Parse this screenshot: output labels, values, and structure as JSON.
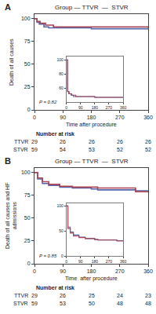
{
  "chart_data": [
    {
      "type": "step",
      "title": "Group — TTVR  —  STVR",
      "xlabel": "Time after procedure",
      "ylabel": "Death of all causes",
      "annotations": [
        "A",
        "P = 0.82"
      ],
      "xlim": [
        0,
        360
      ],
      "ylim": [
        0,
        105
      ],
      "xticks": [
        0,
        90,
        180,
        270,
        360
      ],
      "yticks": [
        0,
        25,
        50,
        75,
        100
      ],
      "grid": false,
      "series": [
        {
          "name": "TTVR",
          "color": "#5566aa",
          "x": [
            0,
            8,
            15,
            30,
            45,
            180,
            360
          ],
          "values": [
            100,
            96,
            94,
            91,
            90,
            89,
            89
          ]
        },
        {
          "name": "STVR",
          "color": "#aa4455",
          "x": [
            0,
            8,
            18,
            35,
            60,
            180,
            360
          ],
          "values": [
            100,
            97,
            95,
            93,
            91,
            91,
            90
          ]
        }
      ],
      "inset": {
        "type": "step",
        "xlim": [
          0,
          360
        ],
        "ylim": [
          40,
          105
        ],
        "xticks": [
          0,
          90,
          180,
          270,
          360
        ],
        "yticks": [
          60,
          80,
          100
        ],
        "grid": false,
        "series": [
          {
            "name": "TTVR",
            "color": "#5566aa",
            "x": [
              0,
              8,
              15,
              30,
              45,
              180,
              360
            ],
            "values": [
              100,
              55,
              52,
              50,
              48,
              47,
              47
            ]
          },
          {
            "name": "STVR",
            "color": "#aa4455",
            "x": [
              0,
              8,
              18,
              35,
              60,
              180,
              360
            ],
            "values": [
              100,
              55,
              52,
              50,
              48,
              47,
              47
            ]
          }
        ]
      },
      "number_at_risk": {
        "title": "Number at risk",
        "x": [
          0,
          90,
          180,
          270,
          360
        ],
        "series": [
          {
            "name": "TTVR",
            "values": [
              29,
              26,
              26,
              26,
              26
            ]
          },
          {
            "name": "STVR",
            "values": [
              59,
              54,
              53,
              52,
              52
            ]
          }
        ]
      }
    },
    {
      "type": "step",
      "title": "Group — TTVR  —  STVR",
      "xlabel": "Time  after procedure",
      "ylabel": "Death of all causes and HF admissions",
      "annotations": [
        "B",
        "P = 0.85"
      ],
      "xlim": [
        0,
        360
      ],
      "ylim": [
        0,
        105
      ],
      "xticks": [
        0,
        90,
        180,
        270,
        360
      ],
      "yticks": [
        0,
        25,
        50,
        75,
        100
      ],
      "grid": false,
      "series": [
        {
          "name": "TTVR",
          "color": "#5566aa",
          "x": [
            0,
            10,
            25,
            45,
            80,
            120,
            180,
            200,
            320,
            360
          ],
          "values": [
            100,
            93,
            88,
            86,
            84,
            83,
            82,
            81,
            80,
            80
          ]
        },
        {
          "name": "STVR",
          "color": "#aa4455",
          "x": [
            0,
            10,
            25,
            45,
            80,
            120,
            180,
            200,
            320,
            360
          ],
          "values": [
            100,
            94,
            90,
            87,
            85,
            84,
            84,
            83,
            79,
            79
          ]
        }
      ],
      "inset": {
        "type": "step",
        "xlim": [
          0,
          360
        ],
        "ylim": [
          0,
          105
        ],
        "xticks": [
          0,
          90,
          180,
          270,
          360
        ],
        "yticks": [
          0,
          50,
          100
        ],
        "grid": false,
        "series": [
          {
            "name": "TTVR",
            "color": "#5566aa",
            "x": [
              0,
              10,
              25,
              45,
              80,
              120,
              180,
              200,
              320,
              360
            ],
            "values": [
              100,
              58,
              48,
              42,
              38,
              35,
              33,
              32,
              31,
              31
            ]
          },
          {
            "name": "STVR",
            "color": "#aa4455",
            "x": [
              0,
              10,
              25,
              45,
              80,
              120,
              180,
              200,
              320,
              360
            ],
            "values": [
              100,
              55,
              46,
              40,
              37,
              35,
              33,
              32,
              30,
              30
            ]
          }
        ]
      },
      "number_at_risk": {
        "title": "Number at risk",
        "x": [
          0,
          90,
          180,
          270,
          360
        ],
        "series": [
          {
            "name": "TTVR",
            "values": [
              29,
              26,
              25,
              24,
              23
            ]
          },
          {
            "name": "STVR",
            "values": [
              59,
              53,
              50,
              48,
              48
            ]
          }
        ]
      }
    }
  ]
}
